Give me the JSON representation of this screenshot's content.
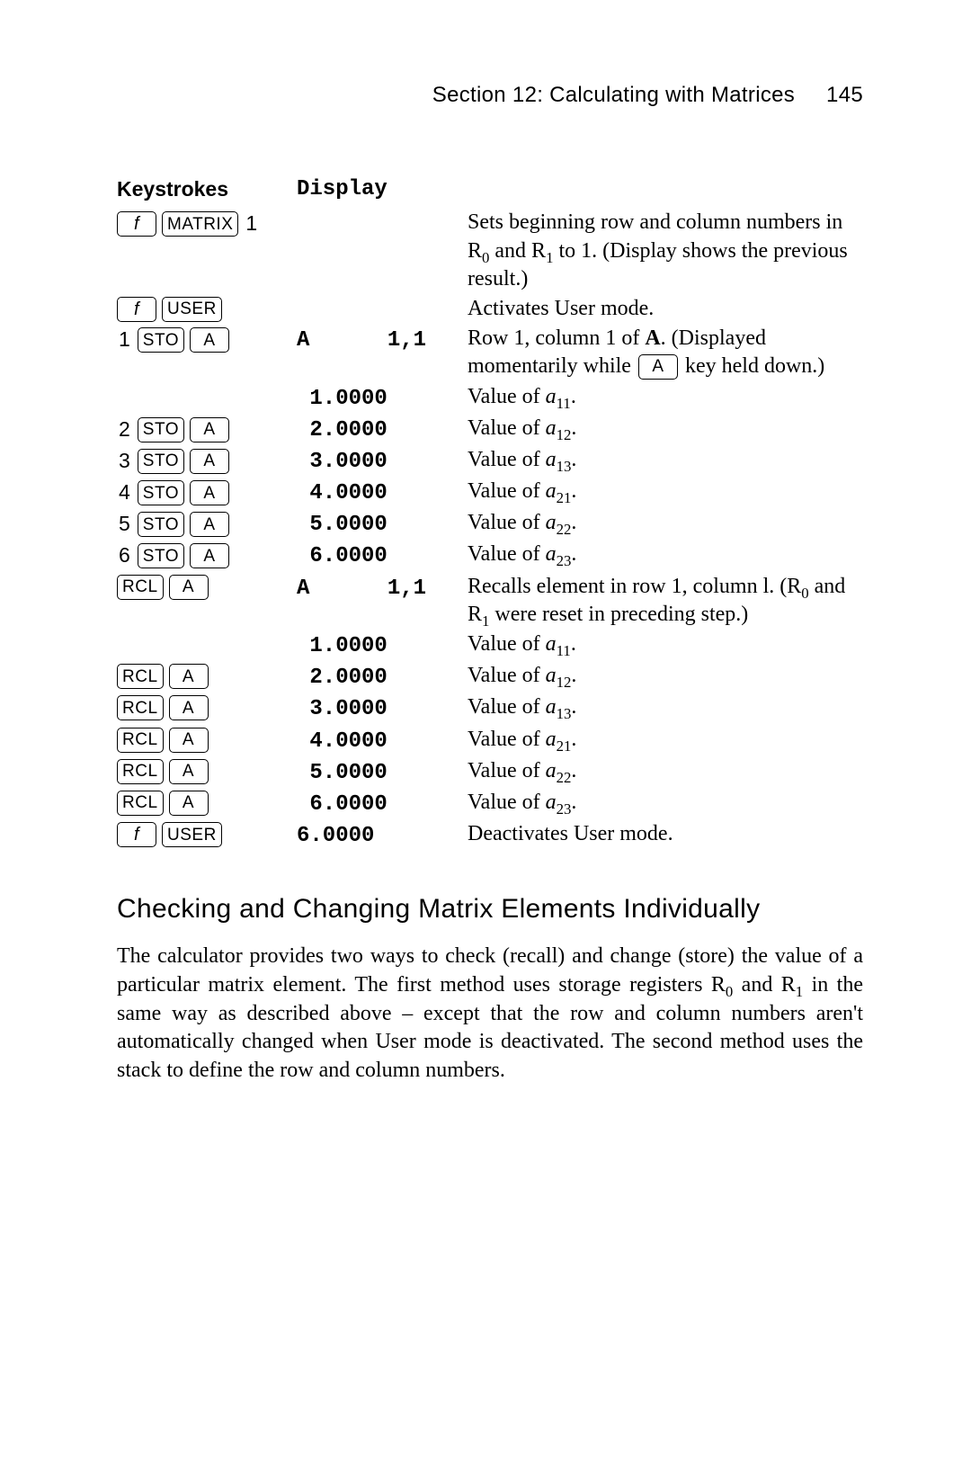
{
  "header": {
    "section_title": "Section 12: Calculating with Matrices",
    "page_number": "145"
  },
  "table": {
    "col1_header": "Keystrokes",
    "col2_header": "Display",
    "key_labels": {
      "f": "f",
      "matrix": "MATRIX",
      "user": "USER",
      "sto": "STO",
      "rcl": "RCL",
      "a": "A"
    },
    "rows": [
      {
        "keystrokes": [
          {
            "k": "f"
          },
          {
            "k": "matrix"
          },
          {
            "txt": "1"
          }
        ],
        "display": "",
        "desc_html": "Sets beginning row and column numbers in R<sub>0</sub> and R<sub>1</sub> to 1. (Display shows the previous result.)"
      },
      {
        "keystrokes": [
          {
            "k": "f"
          },
          {
            "k": "user"
          }
        ],
        "display": "",
        "desc_html": "Activates User mode."
      },
      {
        "keystrokes": [
          {
            "txt": "1"
          },
          {
            "k": "sto"
          },
          {
            "k": "a"
          }
        ],
        "display": "A      1,1",
        "desc_html": "Row 1, column 1 of <span class=\"bold\">A</span>. (Displayed momentarily while <span class=\"key key-a inline-key\">A</span> key held down.)"
      },
      {
        "keystrokes": [],
        "display": " 1.0000",
        "desc_html": "Value of <span class=\"ital\">a</span><sub>11</sub>."
      },
      {
        "keystrokes": [
          {
            "txt": "2"
          },
          {
            "k": "sto"
          },
          {
            "k": "a"
          }
        ],
        "display": " 2.0000",
        "desc_html": "Value of <span class=\"ital\">a</span><sub>12</sub>."
      },
      {
        "keystrokes": [
          {
            "txt": "3"
          },
          {
            "k": "sto"
          },
          {
            "k": "a"
          }
        ],
        "display": " 3.0000",
        "desc_html": "Value of <span class=\"ital\">a</span><sub>13</sub>."
      },
      {
        "keystrokes": [
          {
            "txt": "4"
          },
          {
            "k": "sto"
          },
          {
            "k": "a"
          }
        ],
        "display": " 4.0000",
        "desc_html": "Value of <span class=\"ital\">a</span><sub>21</sub>."
      },
      {
        "keystrokes": [
          {
            "txt": "5"
          },
          {
            "k": "sto"
          },
          {
            "k": "a"
          }
        ],
        "display": " 5.0000",
        "desc_html": "Value of <span class=\"ital\">a</span><sub>22</sub>."
      },
      {
        "keystrokes": [
          {
            "txt": "6"
          },
          {
            "k": "sto"
          },
          {
            "k": "a"
          }
        ],
        "display": " 6.0000",
        "desc_html": "Value of <span class=\"ital\">a</span><sub>23</sub>."
      },
      {
        "keystrokes": [
          {
            "k": "rcl"
          },
          {
            "k": "a"
          }
        ],
        "display": "A      1,1",
        "desc_html": "Recalls element in row 1, column l. (R<sub>0</sub> and R<sub>1</sub> were reset in preceding step.)"
      },
      {
        "keystrokes": [],
        "display": " 1.0000",
        "desc_html": "Value of <span class=\"ital\">a</span><sub>11</sub>."
      },
      {
        "keystrokes": [
          {
            "k": "rcl"
          },
          {
            "k": "a"
          }
        ],
        "display": " 2.0000",
        "desc_html": "Value of <span class=\"ital\">a</span><sub>12</sub>."
      },
      {
        "keystrokes": [
          {
            "k": "rcl"
          },
          {
            "k": "a"
          }
        ],
        "display": " 3.0000",
        "desc_html": "Value of <span class=\"ital\">a</span><sub>13</sub>."
      },
      {
        "keystrokes": [
          {
            "k": "rcl"
          },
          {
            "k": "a"
          }
        ],
        "display": " 4.0000",
        "desc_html": "Value of <span class=\"ital\">a</span><sub>21</sub>."
      },
      {
        "keystrokes": [
          {
            "k": "rcl"
          },
          {
            "k": "a"
          }
        ],
        "display": " 5.0000",
        "desc_html": "Value of <span class=\"ital\">a</span><sub>22</sub>."
      },
      {
        "keystrokes": [
          {
            "k": "rcl"
          },
          {
            "k": "a"
          }
        ],
        "display": " 6.0000",
        "desc_html": "Value of <span class=\"ital\">a</span><sub>23</sub>."
      },
      {
        "keystrokes": [
          {
            "k": "f"
          },
          {
            "k": "user"
          }
        ],
        "display": "6.0000",
        "desc_html": "Deactivates User mode."
      }
    ]
  },
  "section": {
    "heading": "Checking and Changing Matrix Elements Individually",
    "paragraph_html": "The calculator provides two ways to check (recall) and change (store) the value of a particular matrix element. The first method uses storage registers R<sub>0</sub> and R<sub>1</sub> in the same way as described above – except that the row and column numbers aren't automatically changed when User mode is deactivated. The second method uses the stack to define the row and column numbers."
  },
  "colors": {
    "background": "#ffffff",
    "text": "#000000",
    "key_border": "#000000"
  }
}
